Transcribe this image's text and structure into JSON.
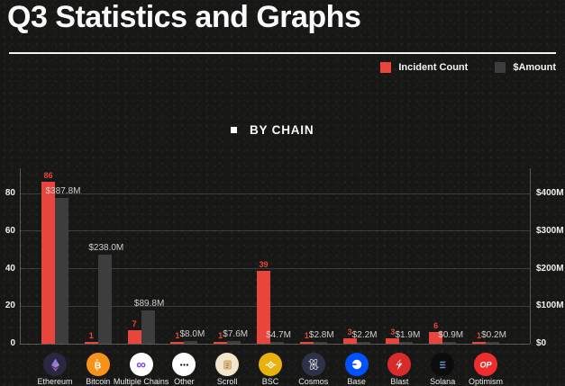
{
  "title": "Q3 Statistics and Graphs",
  "section_label": "BY CHAIN",
  "legend": {
    "items": [
      {
        "label": "Incident Count",
        "color": "#e8453c"
      },
      {
        "label": "$Amount",
        "color": "#3d3d3d"
      }
    ]
  },
  "chart_data": {
    "type": "bar",
    "title": "BY CHAIN",
    "categories": [
      "Ethereum",
      "Bitcoin",
      "Multiple Chains",
      "Other",
      "Scroll",
      "BSC",
      "Cosmos",
      "Base",
      "Blast",
      "Solana",
      "Optimism"
    ],
    "icon_names": [
      "ethereum-icon",
      "bitcoin-icon",
      "multiple-chains-icon",
      "other-icon",
      "scroll-icon",
      "bsc-icon",
      "cosmos-icon",
      "base-icon",
      "blast-icon",
      "solana-icon",
      "optimism-icon"
    ],
    "series": [
      {
        "name": "Incident Count",
        "axis": "left",
        "color": "#e8453c",
        "values": [
          86,
          1,
          7,
          1,
          1,
          39,
          1,
          3,
          3,
          6,
          1
        ],
        "labels": [
          "86",
          "1",
          "7",
          "1",
          "1",
          "39",
          "1",
          "3",
          "3",
          "6",
          "1"
        ]
      },
      {
        "name": "$Amount",
        "axis": "right",
        "color": "#3d3d3d",
        "values": [
          387.8,
          238.0,
          89.8,
          8.0,
          7.6,
          4.7,
          2.8,
          2.2,
          1.9,
          0.9,
          0.2
        ],
        "labels": [
          "$387.8M",
          "$238.0M",
          "$89.8M",
          "$8.0M",
          "$7.6M",
          "$4.7M",
          "$2.8M",
          "$2.2M",
          "$1.9M",
          "$0.9M",
          "$0.2M"
        ]
      }
    ],
    "left_axis": {
      "ticks": [
        0,
        20,
        40,
        60,
        80
      ],
      "range": [
        0,
        94
      ]
    },
    "right_axis": {
      "tick_labels": [
        "$0",
        "$100M",
        "$200M",
        "$300M",
        "$400M"
      ],
      "tick_values": [
        0,
        100,
        200,
        300,
        400
      ],
      "range": [
        0,
        470
      ]
    },
    "grid": true,
    "legend_position": "top-right"
  }
}
